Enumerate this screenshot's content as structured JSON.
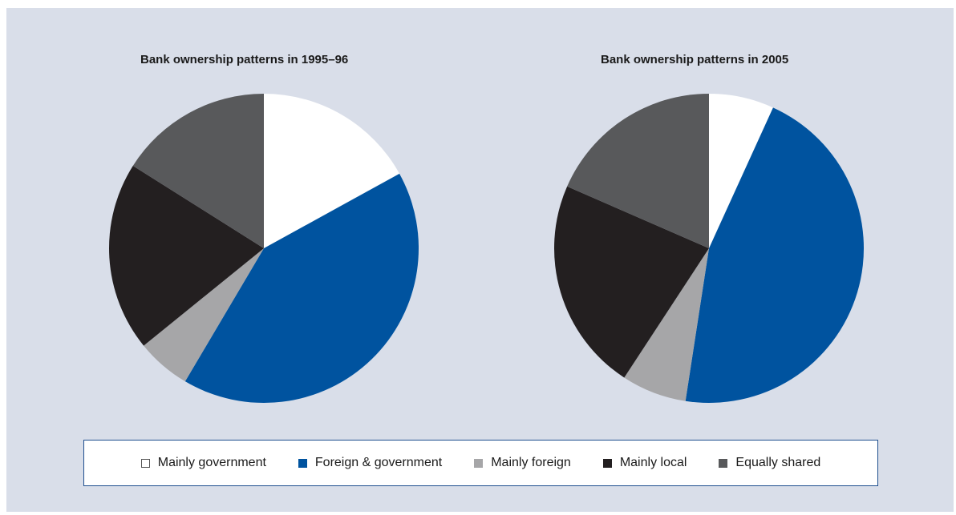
{
  "colors": {
    "Mainly government": "#ffffff",
    "Foreign & government": "#00539f",
    "Mainly foreign": "#a6a6a8",
    "Mainly local": "#231f20",
    "Equally shared": "#58595b",
    "background": "#d9dee9"
  },
  "legend": {
    "items": [
      {
        "label": "Mainly government",
        "color": "#ffffff"
      },
      {
        "label": "Foreign & government",
        "color": "#00539f"
      },
      {
        "label": "Mainly foreign",
        "color": "#a6a6a8"
      },
      {
        "label": "Mainly local",
        "color": "#231f20"
      },
      {
        "label": "Equally shared",
        "color": "#58595b"
      }
    ]
  },
  "chart_data": [
    {
      "type": "pie",
      "title": "Bank ownership patterns in 1995–96",
      "categories": [
        "Mainly government",
        "Foreign & government",
        "Mainly foreign",
        "Mainly local",
        "Equally shared"
      ],
      "values": [
        18,
        44,
        6,
        21,
        17
      ],
      "legend": "bottom"
    },
    {
      "type": "pie",
      "title": "Bank ownership patterns in 2005",
      "categories": [
        "Mainly government",
        "Foreign & government",
        "Mainly foreign",
        "Mainly local",
        "Equally shared"
      ],
      "values": [
        7,
        47,
        7,
        23,
        19
      ],
      "legend": "bottom"
    }
  ]
}
